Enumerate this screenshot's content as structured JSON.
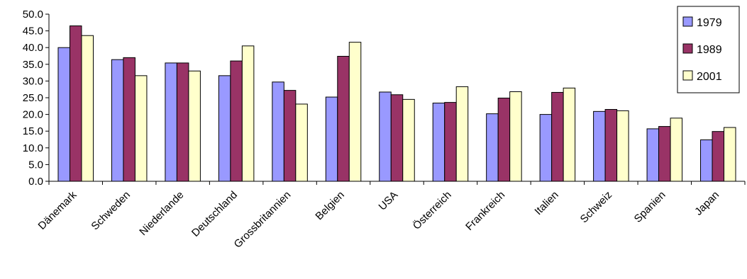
{
  "chart_data": {
    "type": "bar",
    "title": "",
    "xlabel": "",
    "ylabel": "",
    "ylim": [
      0,
      50
    ],
    "yticks": [
      "0.0",
      "5.0",
      "10.0",
      "15.0",
      "20.0",
      "25.0",
      "30.0",
      "35.0",
      "40.0",
      "45.0",
      "50.0"
    ],
    "grid": false,
    "legend_position": "top-right",
    "categories": [
      "Dänemark",
      "Schweden",
      "Niederlande",
      "Deutschland",
      "Grossbritannien",
      "Belgien",
      "USA",
      "Österreich",
      "Frankreich",
      "Italien",
      "Schweiz",
      "Spanien",
      "Japan"
    ],
    "series": [
      {
        "name": "1979",
        "color": "#9999ff",
        "values": [
          40.0,
          36.4,
          35.4,
          31.6,
          29.7,
          25.2,
          26.7,
          23.4,
          20.2,
          20.0,
          20.9,
          15.7,
          12.4
        ]
      },
      {
        "name": "1989",
        "color": "#993366",
        "values": [
          46.5,
          37.0,
          35.4,
          36.0,
          27.2,
          37.4,
          25.9,
          23.6,
          24.9,
          26.6,
          21.5,
          16.4,
          14.9
        ]
      },
      {
        "name": "2001",
        "color": "#ffffcc",
        "values": [
          43.6,
          31.6,
          33.0,
          40.5,
          23.1,
          41.6,
          24.5,
          28.3,
          26.8,
          27.9,
          21.1,
          18.9,
          16.1
        ]
      }
    ]
  }
}
